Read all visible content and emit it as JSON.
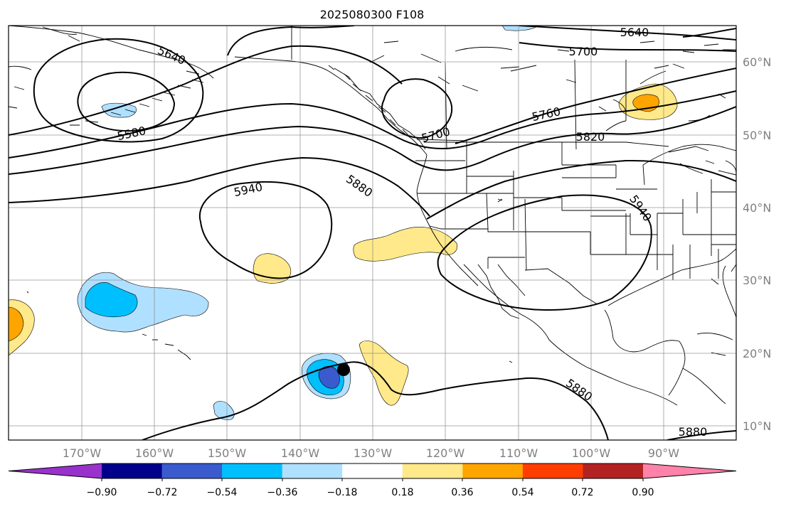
{
  "title": "2025080300 F108",
  "chart_data": {
    "type": "map",
    "title": "2025080300 F108",
    "projection": "PlateCarree",
    "lon_range": [
      -180,
      -80
    ],
    "lat_range": [
      8,
      65
    ],
    "x_tick_labels": [
      "170°W",
      "160°W",
      "150°W",
      "140°W",
      "130°W",
      "120°W",
      "110°W",
      "100°W",
      "90°W"
    ],
    "y_tick_labels": [
      "60°N",
      "50°N",
      "40°N",
      "30°N",
      "20°N",
      "10°N"
    ],
    "grid": true,
    "contour_field": {
      "type": "height_contours",
      "labels": [
        "5640",
        "5640",
        "5700",
        "5580",
        "5760",
        "5700",
        "5820",
        "5940",
        "5880",
        "5940",
        "5880",
        "5880"
      ]
    },
    "shaded_field": {
      "type": "anomaly",
      "colorbar_ticks": [
        "−0.90",
        "−0.72",
        "−0.54",
        "−0.36",
        "−0.18",
        "0.18",
        "0.36",
        "0.54",
        "0.72",
        "0.90"
      ],
      "colorbar_colors": [
        "#9932cc",
        "#00008b",
        "#3a5bcd",
        "#00bfff",
        "#b0e0ff",
        "#ffffff",
        "#ffe98a",
        "#ffa500",
        "#ff3d00",
        "#b22222",
        "#ff82aa"
      ],
      "extend": "both"
    },
    "marker": {
      "type": "point",
      "lon": -134,
      "lat": 17.5,
      "color": "#000000"
    }
  }
}
